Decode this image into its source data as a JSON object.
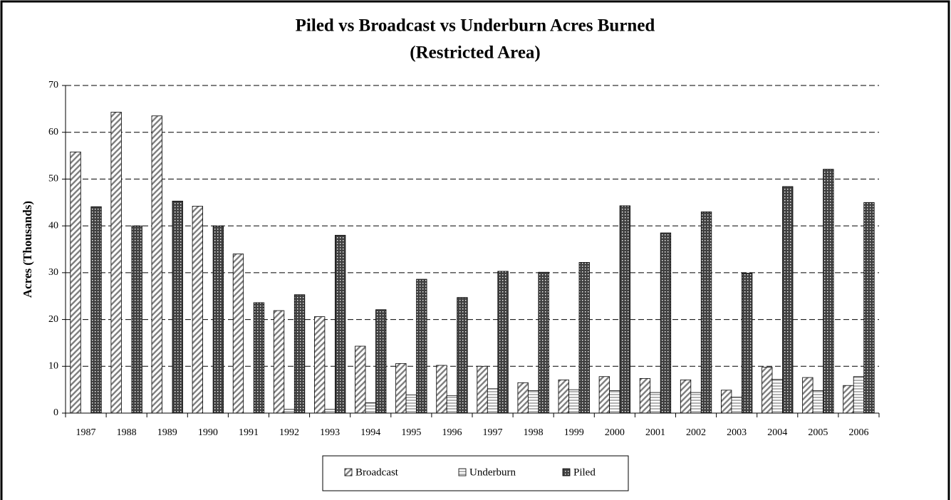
{
  "chart_data": {
    "type": "bar",
    "title": "Piled vs Broadcast vs Underburn Acres Burned",
    "subtitle": "(Restricted Area)",
    "y_label": "Acres (Thousands)",
    "categories": [
      "1987",
      "1988",
      "1989",
      "1990",
      "1991",
      "1992",
      "1993",
      "1994",
      "1995",
      "1996",
      "1997",
      "1998",
      "1999",
      "2000",
      "2001",
      "2002",
      "2003",
      "2004",
      "2005",
      "2006"
    ],
    "series": [
      {
        "name": "Broadcast",
        "color": "#808080",
        "pattern": "diagonal",
        "values": [
          55.8,
          64.3,
          63.5,
          44.2,
          34,
          21.9,
          20.6,
          14.3,
          10.6,
          10.2,
          10,
          6.5,
          7.1,
          7.8,
          7.4,
          7.1,
          4.9,
          9.8,
          7.6,
          5.9
        ]
      },
      {
        "name": "Underburn",
        "color": "#808080",
        "pattern": "horizontal",
        "values": [
          0,
          0,
          0,
          0,
          0,
          0.8,
          0.8,
          2.2,
          3.9,
          3.7,
          5.2,
          4.8,
          5,
          4.8,
          4.4,
          4.4,
          3.4,
          7.2,
          4.8,
          7.8
        ]
      },
      {
        "name": "Piled",
        "color": "#404040",
        "pattern": "crosshatch",
        "values": [
          44.1,
          40,
          45.3,
          40,
          23.6,
          25.3,
          38,
          22.1,
          28.6,
          24.7,
          30.3,
          30.1,
          32.2,
          44.3,
          38.5,
          43,
          29.9,
          48.4,
          52.1,
          45
        ]
      }
    ],
    "ylim": [
      0,
      70
    ],
    "yticks": [
      0,
      10,
      20,
      30,
      40,
      50,
      60,
      70
    ],
    "grid": true,
    "legend": "bottom"
  }
}
